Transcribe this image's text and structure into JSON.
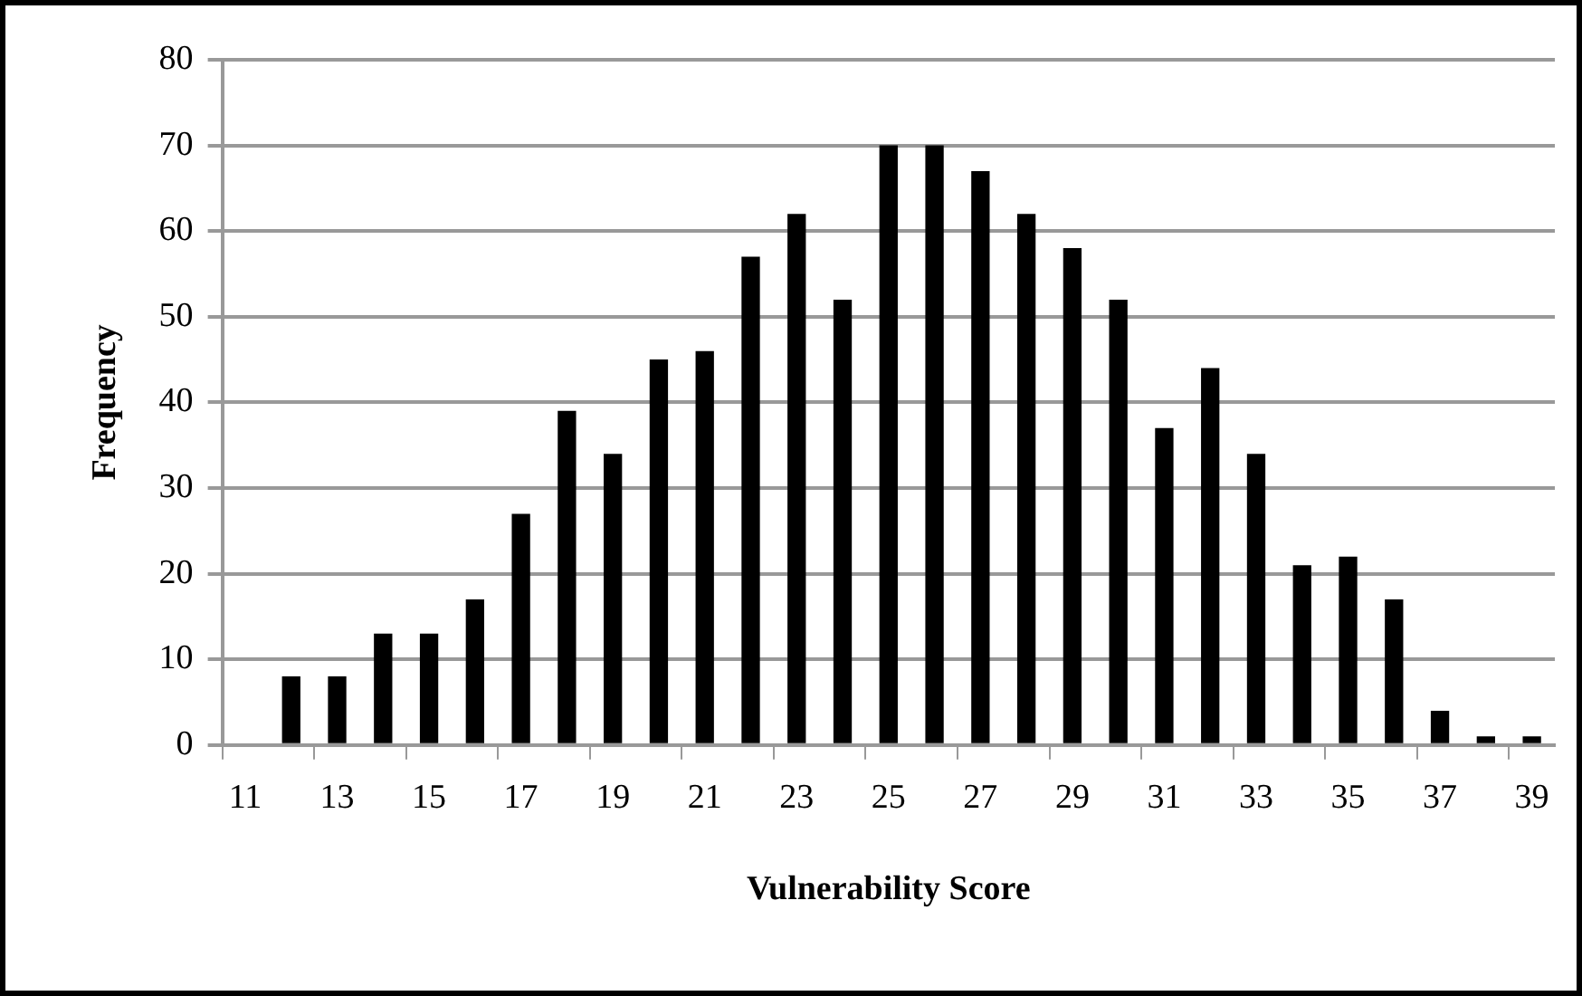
{
  "chart_data": {
    "type": "bar",
    "xlabel": "Vulnerability Score",
    "ylabel": "Frequency",
    "categories": [
      "11",
      null,
      "13",
      null,
      "15",
      null,
      "17",
      null,
      "19",
      null,
      "21",
      null,
      "23",
      null,
      "25",
      null,
      "27",
      null,
      "29",
      null,
      "31",
      null,
      "33",
      null,
      "35",
      null,
      "37",
      null,
      "39"
    ],
    "values": [
      0,
      8,
      8,
      13,
      13,
      17,
      27,
      39,
      34,
      45,
      46,
      57,
      62,
      52,
      70,
      70,
      67,
      62,
      58,
      52,
      37,
      44,
      34,
      21,
      22,
      17,
      4,
      1,
      1
    ],
    "color": "#000000",
    "ylim": [
      0,
      80
    ],
    "yticks": [
      0,
      10,
      20,
      30,
      40,
      50,
      60,
      70,
      80
    ],
    "grid": "y",
    "legend": false
  }
}
